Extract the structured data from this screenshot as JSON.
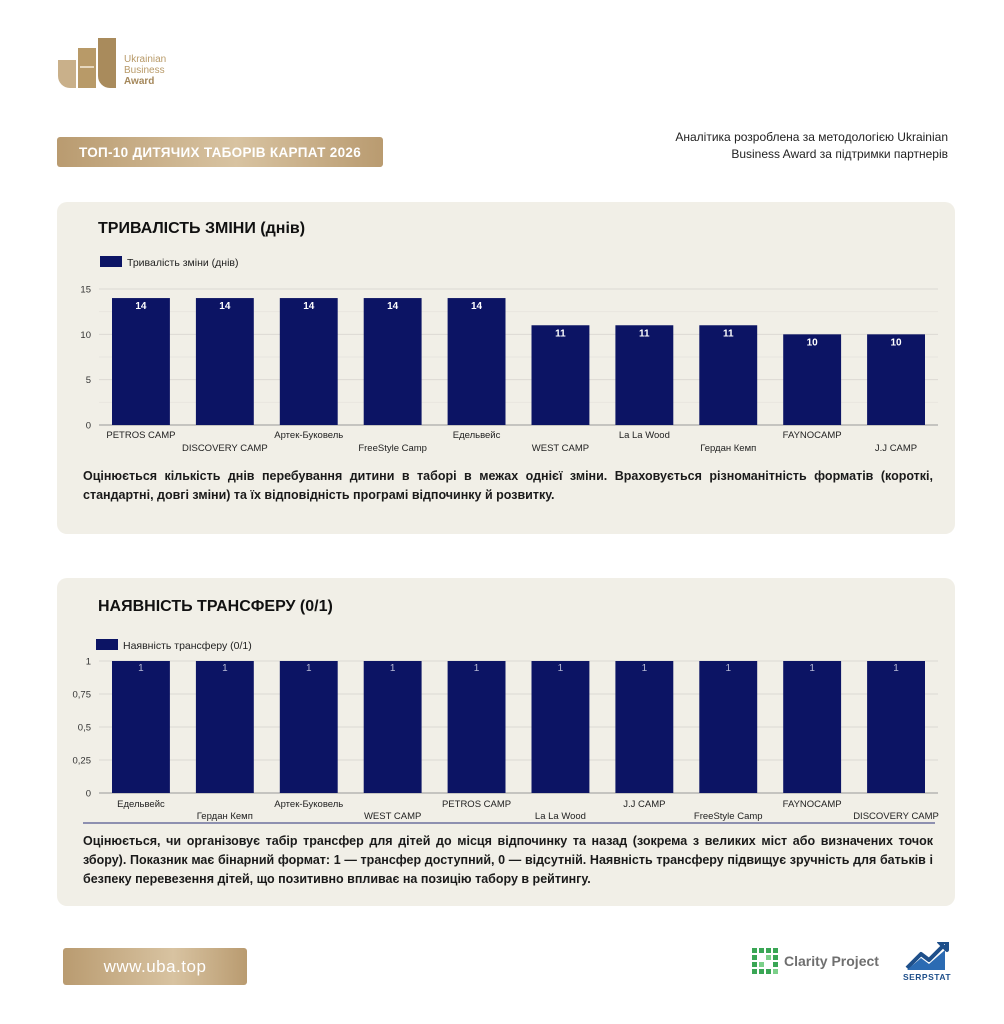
{
  "brand": {
    "logo_lines": [
      "Ukrainian",
      "Business",
      "Award"
    ]
  },
  "header": {
    "banner": "ТОП-10 ДИТЯЧИХ ТАБОРІВ КАРПАТ 2026",
    "note_line1": "Аналітика розроблена за методологією Ukrainian",
    "note_line2": "Business Award за підтримки партнерів"
  },
  "colors": {
    "bar": "#0c1464",
    "gold": "#b99b70",
    "card": "#f1efe7"
  },
  "chart_data": [
    {
      "type": "bar",
      "title": "ТРИВАЛІСТЬ ЗМІНИ (днів)",
      "legend": "Тривалість зміни (днів)",
      "legend_position": "top-left",
      "categories": [
        "PETROS CAMP",
        "DISCOVERY CAMP",
        "Артек-Буковель",
        "FreeStyle Camp",
        "Едельвейс",
        "WEST CAMP",
        "La La Wood",
        "Гердан Кемп",
        "FAYNOCAMP",
        "J.J CAMP"
      ],
      "series": [
        {
          "name": "Тривалість зміни (днів)",
          "values": [
            14,
            14,
            14,
            14,
            14,
            11,
            11,
            11,
            10,
            10
          ]
        }
      ],
      "ylim": [
        0,
        15
      ],
      "yticks": [
        "0",
        "5",
        "10",
        "15"
      ],
      "grid": true
    },
    {
      "type": "bar",
      "title": "НАЯВНІСТЬ ТРАНСФЕРУ (0/1)",
      "legend": "Наявність трансферу (0/1)",
      "legend_position": "top-left",
      "categories": [
        "Едельвейс",
        "Гердан Кемп",
        "Артек-Буковель",
        "WEST CAMP",
        "PETROS CAMP",
        "La La Wood",
        "J.J CAMP",
        "FreeStyle Camp",
        "FAYNOCAMP",
        "DISCOVERY CAMP"
      ],
      "series": [
        {
          "name": "Наявність трансферу (0/1)",
          "values": [
            1,
            1,
            1,
            1,
            1,
            1,
            1,
            1,
            1,
            1
          ]
        }
      ],
      "ylim": [
        0,
        1
      ],
      "yticks": [
        "0",
        "0,25",
        "0,5",
        "0,75",
        "1"
      ],
      "grid": true
    }
  ],
  "descriptions": {
    "card1": "Оцінюється кількість днів перебування дитини в таборі в межах однієї зміни. Враховується різноманітність форматів (короткі, стандартні, довгі зміни) та їх відповідність програмі відпочинку й розвитку.",
    "card2": "Оцінюється, чи організовує табір трансфер для дітей до місця відпочинку та назад (зокрема з великих міст або визначених точок збору). Показник має бінарний формат: 1 — трансфер доступний, 0 — відсутній. Наявність трансферу підвищує зручність для батьків і безпеку перевезення дітей, що позитивно впливає на позицію табору в рейтингу."
  },
  "footer": {
    "url": "www.uba.top",
    "partner1": "Clarity Project",
    "partner2": "SERPSTAT"
  }
}
